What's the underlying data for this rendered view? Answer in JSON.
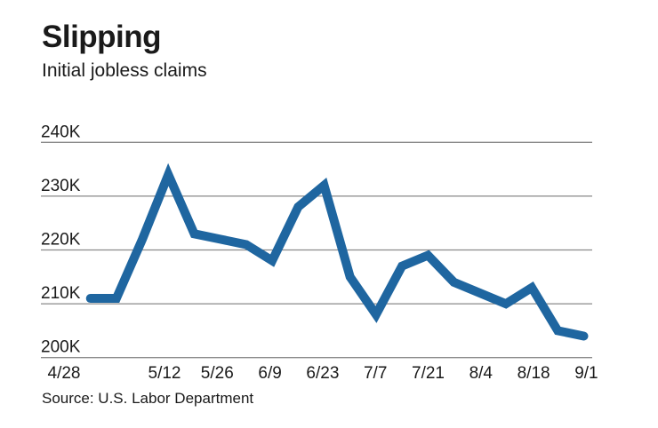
{
  "chart_data": {
    "type": "line",
    "title": "Slipping",
    "subtitle": "Initial jobless claims",
    "source": "Source: U.S. Labor Department",
    "xlabel": "",
    "ylabel": "",
    "x": [
      "4/28",
      "5/5",
      "5/12",
      "5/19",
      "5/26",
      "6/2",
      "6/9",
      "6/16",
      "6/23",
      "6/30",
      "7/7",
      "7/14",
      "7/21",
      "7/28",
      "8/4",
      "8/11",
      "8/18",
      "8/25",
      "9/1",
      "9/8"
    ],
    "values": [
      211,
      211,
      222,
      234,
      223,
      222,
      221,
      218,
      228,
      232,
      215,
      208,
      217,
      219,
      214,
      212,
      210,
      213,
      205,
      204
    ],
    "x_tick_labels": [
      "4/28",
      "5/12",
      "5/26",
      "6/9",
      "6/23",
      "7/7",
      "7/21",
      "8/4",
      "8/18",
      "9/1"
    ],
    "y_ticks": [
      200,
      210,
      220,
      230,
      240
    ],
    "y_tick_labels": [
      "200K",
      "210K",
      "220K",
      "230K",
      "240K"
    ],
    "ylim": [
      200,
      240
    ],
    "grid": true,
    "line_color": "#1f66a0",
    "grid_color": "#8a8a8a"
  }
}
